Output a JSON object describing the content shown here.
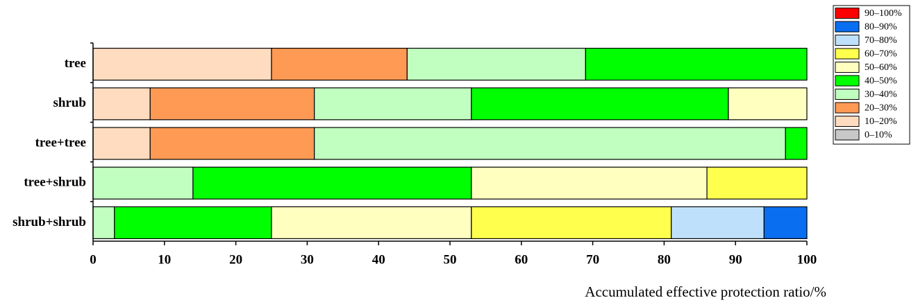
{
  "chart_data": {
    "type": "stacked-barh",
    "xlabel": "Accumulated effective protection ratio/%",
    "categories": [
      "tree",
      "shrub",
      "tree+tree",
      "tree+shrub",
      "shrub+shrub"
    ],
    "series": [
      {
        "name": "0–10%",
        "color": "#c8c8c8",
        "values": [
          null,
          null,
          null,
          null,
          null
        ]
      },
      {
        "name": "10–20%",
        "color": "#ffdcc0",
        "values": [
          25,
          8,
          8,
          null,
          null
        ]
      },
      {
        "name": "20–30%",
        "color": "#ff9a55",
        "values": [
          19,
          23,
          23,
          null,
          null
        ]
      },
      {
        "name": "30–40%",
        "color": "#c0ffc0",
        "values": [
          25,
          22,
          66,
          14,
          3
        ]
      },
      {
        "name": "40–50%",
        "color": "#00ff00",
        "values": [
          31,
          36,
          3,
          39,
          22
        ]
      },
      {
        "name": "50–60%",
        "color": "#ffffc0",
        "values": [
          null,
          11,
          null,
          33,
          28
        ]
      },
      {
        "name": "60–70%",
        "color": "#ffff4d",
        "values": [
          null,
          null,
          null,
          14,
          28
        ]
      },
      {
        "name": "70–80%",
        "color": "#bfe0fa",
        "values": [
          null,
          null,
          null,
          null,
          13
        ]
      },
      {
        "name": "80–90%",
        "color": "#0a6ef0",
        "values": [
          null,
          null,
          null,
          null,
          6
        ]
      },
      {
        "name": "90–100%",
        "color": "#ff0000",
        "values": [
          null,
          null,
          null,
          null,
          null
        ]
      }
    ],
    "xlim": [
      0,
      100
    ],
    "xticks": [
      0,
      10,
      20,
      30,
      40,
      50,
      60,
      70,
      80,
      90,
      100
    ]
  }
}
